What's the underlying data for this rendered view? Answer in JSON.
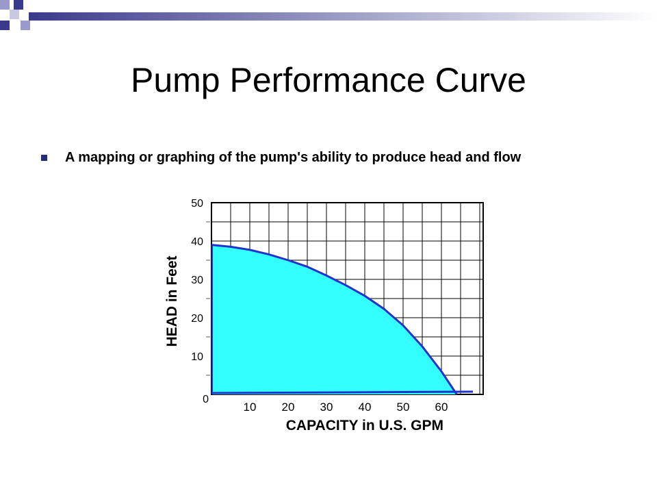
{
  "slide": {
    "title": "Pump Performance Curve",
    "bullets": [
      "A mapping or graphing of the pump's ability to produce head and flow"
    ]
  },
  "chart_data": {
    "type": "area",
    "xlabel": "CAPACITY in U.S. GPM",
    "ylabel": "HEAD in Feet",
    "x": [
      0,
      5,
      10,
      15,
      20,
      25,
      30,
      35,
      40,
      45,
      50,
      55,
      60,
      64
    ],
    "values": [
      39,
      38.5,
      37.7,
      36.5,
      35,
      33.3,
      31,
      28.5,
      25.7,
      22.3,
      18,
      12.5,
      6,
      0
    ],
    "color": "#33ffff",
    "line_color": "#2233cc",
    "xlim": [
      0,
      70
    ],
    "ylim": [
      0,
      50
    ],
    "xticks": [
      10,
      20,
      30,
      40,
      50,
      60
    ],
    "yticks": [
      0,
      10,
      20,
      30,
      40,
      50
    ],
    "minor_xticks": [
      0,
      5,
      15,
      25,
      35,
      45,
      55,
      65,
      70
    ],
    "minor_yticks": [
      5,
      15,
      25,
      35,
      45
    ],
    "grid": true
  }
}
